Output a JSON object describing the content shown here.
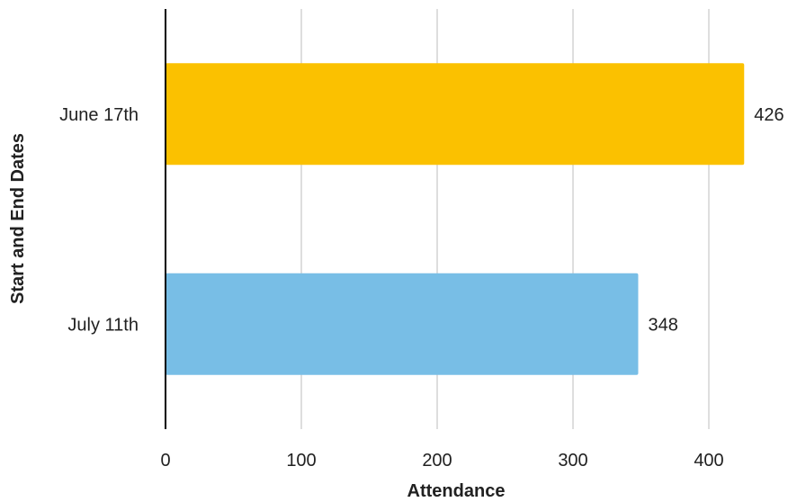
{
  "chart_data": {
    "type": "bar",
    "orientation": "horizontal",
    "categories": [
      "June 17th",
      "July 11th"
    ],
    "values": [
      426,
      348
    ],
    "bar_colors": [
      "#FBC100",
      "#78BEE6"
    ],
    "data_labels": [
      "426",
      "348"
    ],
    "xlabel": "Attendance",
    "ylabel": "Start and End Dates",
    "xlim": [
      0,
      435
    ],
    "xticks": [
      0,
      100,
      200,
      300,
      400
    ],
    "xtick_labels": [
      "0",
      "100",
      "200",
      "300",
      "400"
    ],
    "grid": true,
    "legend": false
  }
}
